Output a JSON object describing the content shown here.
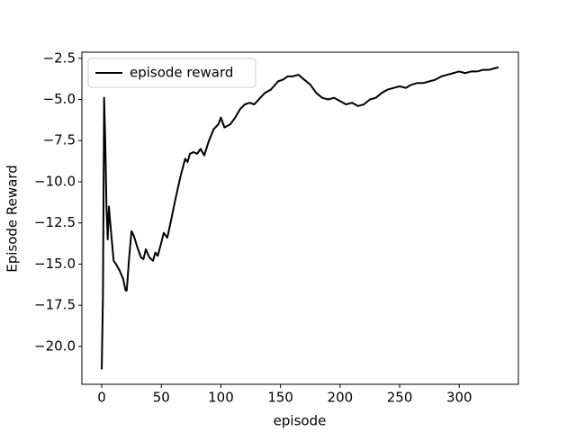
{
  "chart_data": {
    "type": "line",
    "x_label": "episode",
    "y_label": "Episode Reward",
    "x": [
      0,
      1,
      2,
      3,
      4,
      5,
      6,
      7,
      10,
      12,
      15,
      18,
      20,
      21,
      23,
      25,
      27,
      30,
      33,
      35,
      37,
      40,
      43,
      45,
      47,
      50,
      52,
      55,
      58,
      62,
      66,
      70,
      72,
      74,
      77,
      80,
      83,
      86,
      90,
      94,
      98,
      100,
      103,
      108,
      112,
      116,
      120,
      124,
      128,
      133,
      137,
      142,
      148,
      152,
      156,
      160,
      165,
      170,
      175,
      180,
      185,
      190,
      195,
      200,
      205,
      210,
      215,
      220,
      225,
      230,
      235,
      240,
      245,
      250,
      255,
      260,
      265,
      270,
      275,
      280,
      285,
      290,
      295,
      300,
      305,
      310,
      315,
      320,
      325,
      330,
      333
    ],
    "series": [
      {
        "name": "episode reward",
        "color": "#000000",
        "values": [
          -21.4,
          -17.0,
          -4.9,
          -7.7,
          -11.6,
          -13.5,
          -11.5,
          -12.4,
          -14.8,
          -15.0,
          -15.4,
          -15.9,
          -16.6,
          -16.6,
          -14.6,
          -13.0,
          -13.3,
          -14.0,
          -14.6,
          -14.7,
          -14.1,
          -14.6,
          -14.8,
          -14.3,
          -14.5,
          -13.7,
          -13.1,
          -13.4,
          -12.4,
          -11.0,
          -9.7,
          -8.6,
          -8.8,
          -8.3,
          -8.2,
          -8.3,
          -8.0,
          -8.4,
          -7.5,
          -6.8,
          -6.5,
          -6.1,
          -6.7,
          -6.5,
          -6.1,
          -5.6,
          -5.3,
          -5.2,
          -5.3,
          -4.9,
          -4.6,
          -4.4,
          -3.9,
          -3.8,
          -3.6,
          -3.6,
          -3.5,
          -3.8,
          -4.1,
          -4.6,
          -4.9,
          -5.0,
          -4.9,
          -5.1,
          -5.3,
          -5.2,
          -5.4,
          -5.3,
          -5.0,
          -4.9,
          -4.6,
          -4.4,
          -4.3,
          -4.2,
          -4.3,
          -4.1,
          -4.0,
          -4.0,
          -3.9,
          -3.8,
          -3.6,
          -3.5,
          -3.4,
          -3.3,
          -3.4,
          -3.3,
          -3.3,
          -3.2,
          -3.2,
          -3.1,
          -3.05
        ]
      }
    ],
    "xlim": [
      -16.65,
      349.65
    ],
    "ylim": [
      -22.3,
      -2.13
    ],
    "xticks": [
      0,
      50,
      100,
      150,
      200,
      250,
      300
    ],
    "yticks": [
      {
        "value": -2.5,
        "label": "−2.5"
      },
      {
        "value": -5.0,
        "label": "−5.0"
      },
      {
        "value": -7.5,
        "label": "−7.5"
      },
      {
        "value": -10.0,
        "label": "−10.0"
      },
      {
        "value": -12.5,
        "label": "−12.5"
      },
      {
        "value": -15.0,
        "label": "−15.0"
      },
      {
        "value": -17.5,
        "label": "−17.5"
      },
      {
        "value": -20.0,
        "label": "−20.0"
      }
    ],
    "legend": "upper left"
  }
}
